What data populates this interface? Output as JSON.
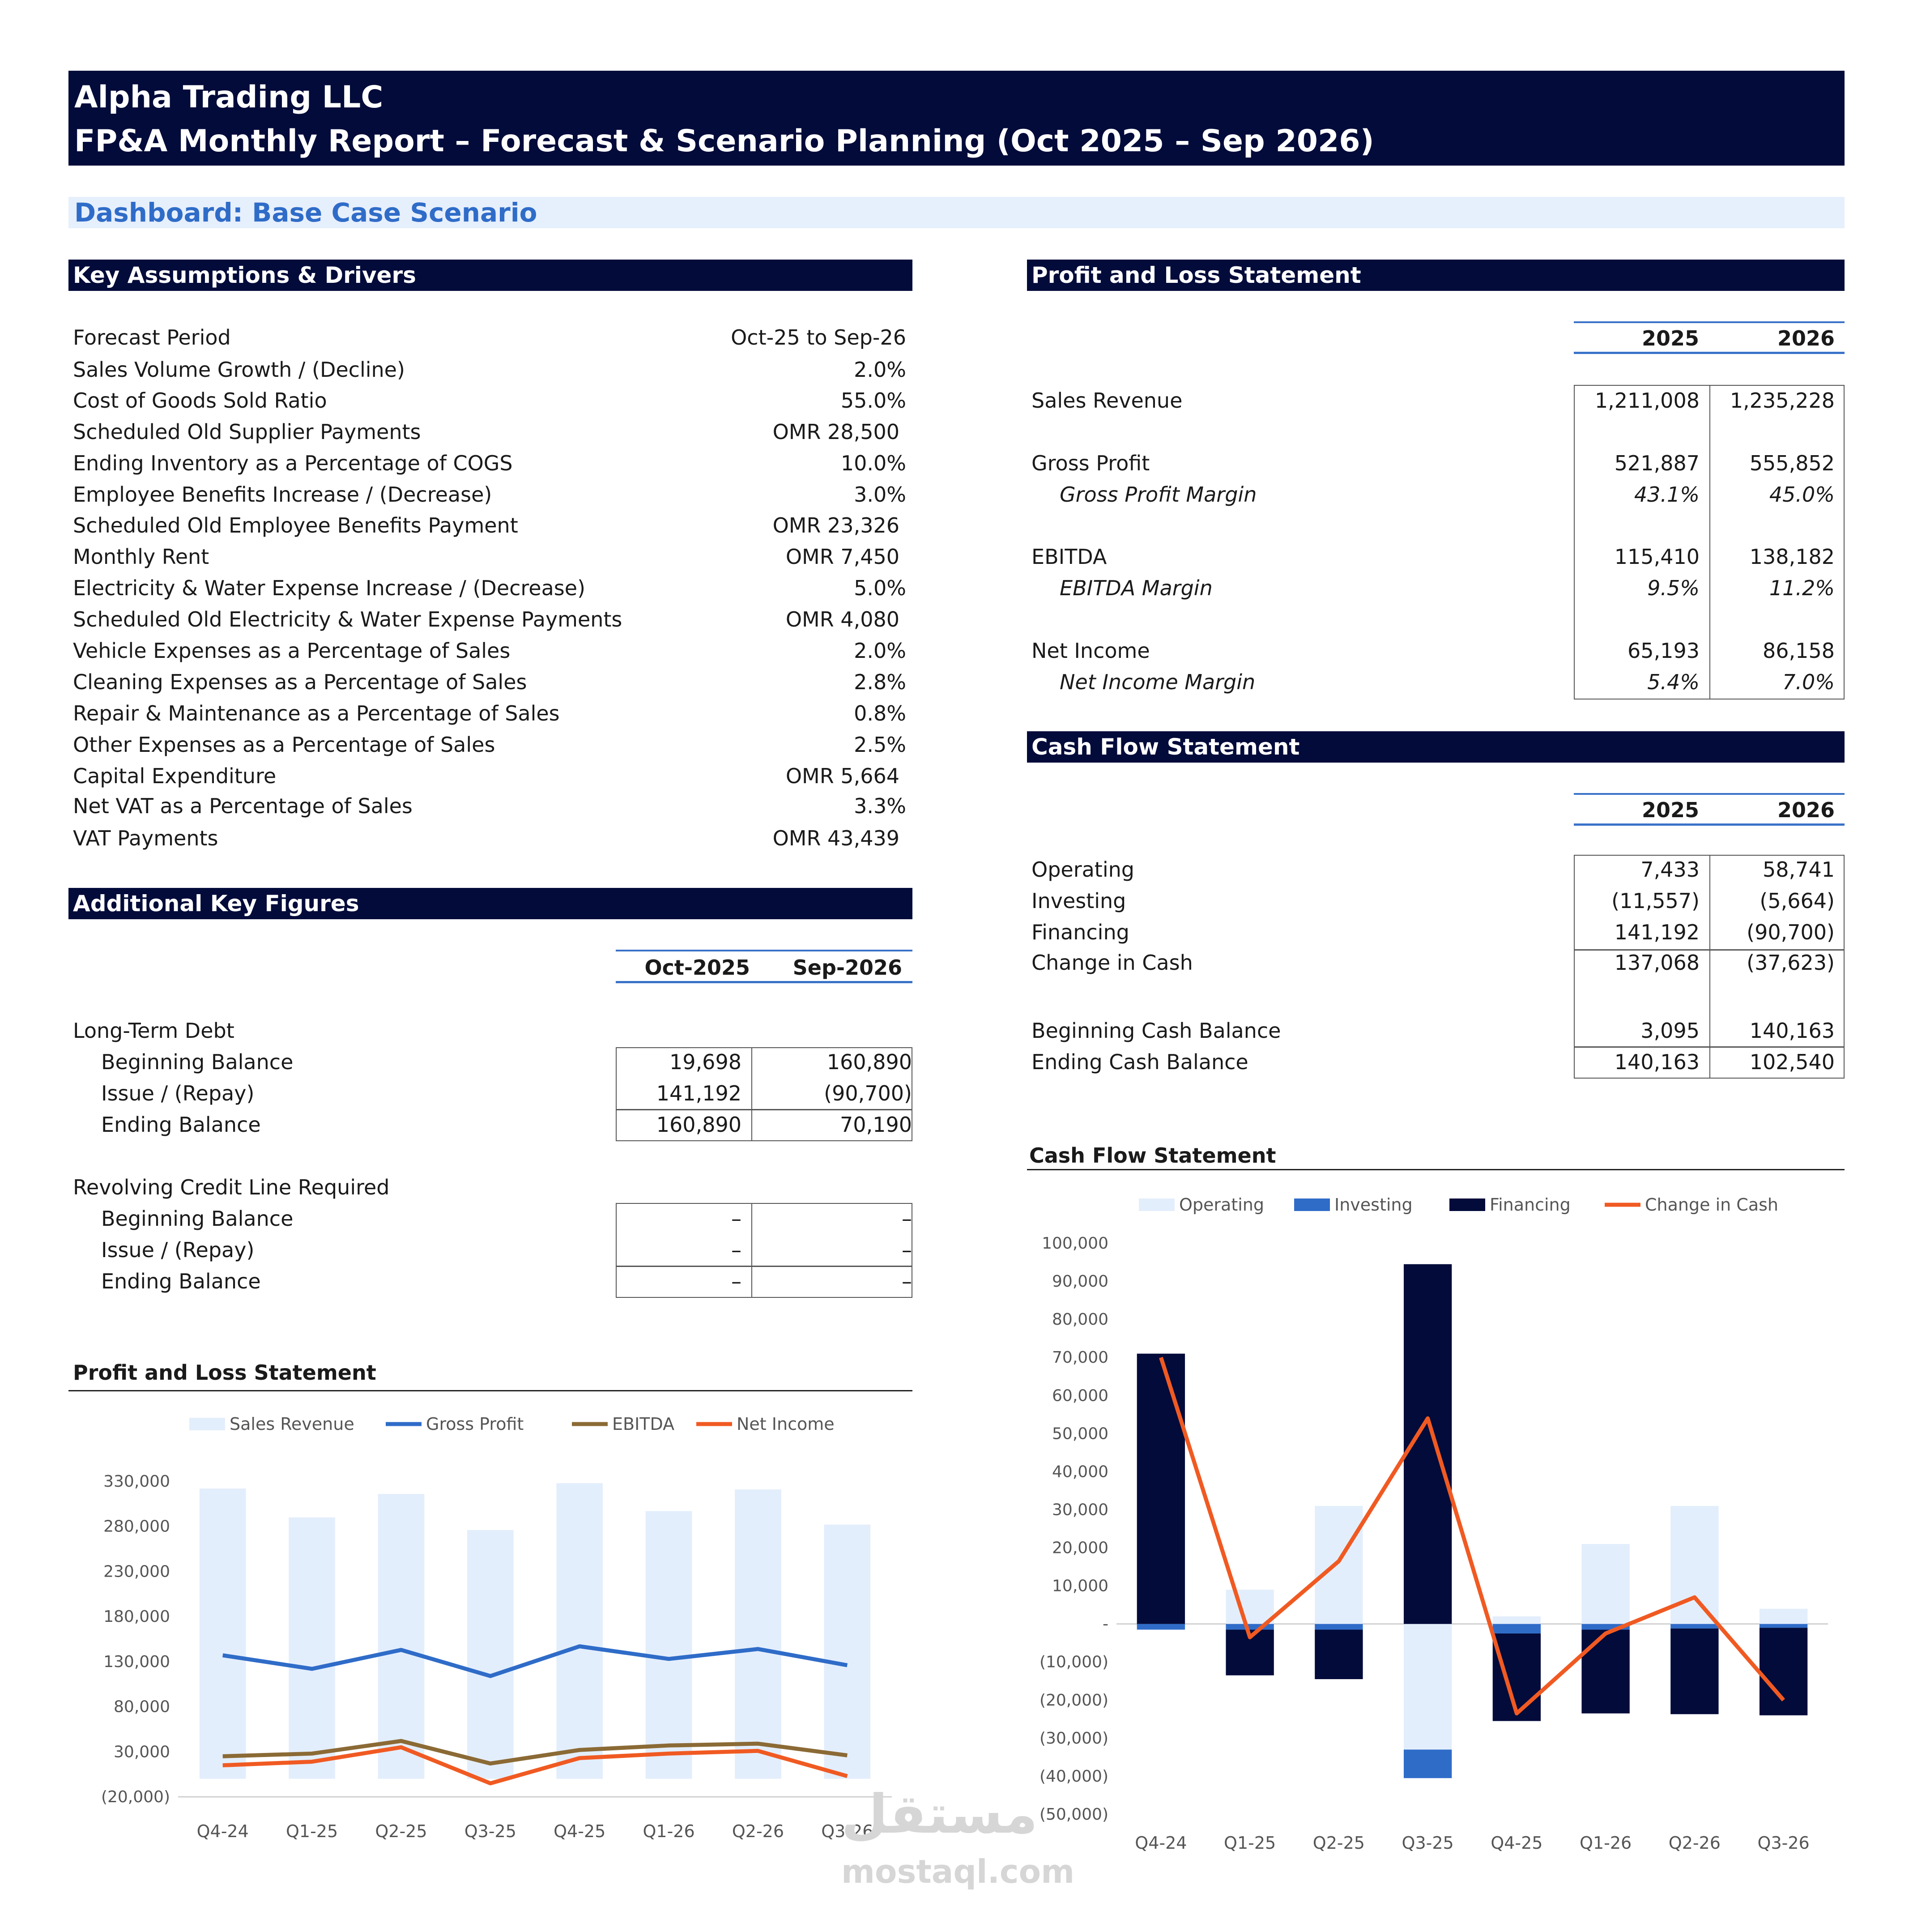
{
  "header": {
    "company": "Alpha Trading LLC",
    "report_title": "FP&A Monthly Report – Forecast & Scenario Planning (Oct 2025 – Sep 2026)"
  },
  "dashboard": {
    "label": "Dashboard: Base Case Scenario"
  },
  "assumptions": {
    "title": "Key Assumptions & Drivers",
    "rows": [
      {
        "label": "Forecast Period",
        "value": "Oct-25 to Sep-26"
      },
      {
        "label": "Sales Volume Growth / (Decline)",
        "value": "2.0%"
      },
      {
        "label": "Cost of Goods Sold Ratio",
        "value": "55.0%"
      },
      {
        "label": "Scheduled Old Supplier Payments",
        "value": "OMR 28,500"
      },
      {
        "label": "Ending Inventory as a Percentage of COGS",
        "value": "10.0%"
      },
      {
        "label": "Employee Benefits Increase / (Decrease)",
        "value": "3.0%"
      },
      {
        "label": "Scheduled Old Employee Benefits Payment",
        "value": "OMR 23,326"
      },
      {
        "label": "Monthly Rent",
        "value": "OMR 7,450"
      },
      {
        "label": "Electricity & Water Expense Increase / (Decrease)",
        "value": "5.0%"
      },
      {
        "label": "Scheduled Old Electricity & Water Expense Payments",
        "value": "OMR 4,080"
      },
      {
        "label": "Vehicle Expenses as a Percentage of Sales",
        "value": "2.0%"
      },
      {
        "label": "Cleaning Expenses as a Percentage of Sales",
        "value": "2.8%"
      },
      {
        "label": "Repair & Maintenance as a Percentage of Sales",
        "value": "0.8%"
      },
      {
        "label": "Other Expenses as a Percentage of Sales",
        "value": "2.5%"
      },
      {
        "label": "Capital Expenditure",
        "value": "OMR 5,664"
      },
      {
        "label": "Net VAT as a Percentage of Sales",
        "value": "3.3%"
      },
      {
        "label": "VAT Payments",
        "value": "OMR 43,439"
      }
    ]
  },
  "key_figures": {
    "title": "Additional Key Figures",
    "col1": "Oct-2025",
    "col2": "Sep-2026",
    "ltd": {
      "label": "Long-Term Debt",
      "rows": [
        {
          "label": "Beginning Balance",
          "v1": "19,698",
          "v2": "160,890"
        },
        {
          "label": "Issue / (Repay)",
          "v1": "141,192",
          "v2": "(90,700)"
        },
        {
          "label": "Ending Balance",
          "v1": "160,890",
          "v2": "70,190"
        }
      ]
    },
    "rcl": {
      "label": "Revolving Credit Line Required",
      "rows": [
        {
          "label": "Beginning Balance",
          "v1": "–",
          "v2": "–"
        },
        {
          "label": "Issue / (Repay)",
          "v1": "–",
          "v2": "–"
        },
        {
          "label": "Ending Balance",
          "v1": "–",
          "v2": "–"
        }
      ]
    }
  },
  "pnl": {
    "title": "Profit and Loss Statement",
    "col1": "2025",
    "col2": "2026",
    "rows": [
      {
        "label": "Sales Revenue",
        "v1": "1,211,008",
        "v2": "1,235,228"
      },
      {
        "label": "Gross Profit",
        "v1": "521,887",
        "v2": "555,852"
      },
      {
        "label": "Gross Profit Margin",
        "v1": "43.1%",
        "v2": "45.0%"
      },
      {
        "label": "EBITDA",
        "v1": "115,410",
        "v2": "138,182"
      },
      {
        "label": "EBITDA Margin",
        "v1": "9.5%",
        "v2": "11.2%"
      },
      {
        "label": "Net Income",
        "v1": "65,193",
        "v2": "86,158"
      },
      {
        "label": "Net Income Margin",
        "v1": "5.4%",
        "v2": "7.0%"
      }
    ]
  },
  "cashflow": {
    "title": "Cash Flow Statement",
    "col1": "2025",
    "col2": "2026",
    "rows": [
      {
        "label": "Operating",
        "v1": "7,433",
        "v2": "58,741"
      },
      {
        "label": "Investing",
        "v1": "(11,557)",
        "v2": "(5,664)"
      },
      {
        "label": "Financing",
        "v1": "141,192",
        "v2": "(90,700)"
      },
      {
        "label": "Change in Cash",
        "v1": "137,068",
        "v2": "(37,623)"
      },
      {
        "label": "Beginning Cash Balance",
        "v1": "3,095",
        "v2": "140,163"
      },
      {
        "label": "Ending Cash Balance",
        "v1": "140,163",
        "v2": "102,540"
      }
    ]
  },
  "chart_data": [
    {
      "type": "bar",
      "title": "Profit and Loss Statement",
      "categories": [
        "Q4-24",
        "Q1-25",
        "Q2-25",
        "Q3-25",
        "Q4-25",
        "Q1-26",
        "Q2-26",
        "Q3-26"
      ],
      "ylim": [
        -20000,
        330000
      ],
      "yticks": [
        -20000,
        30000,
        80000,
        130000,
        180000,
        230000,
        280000,
        330000
      ],
      "ytick_labels": [
        "(20,000)",
        "30,000",
        "80,000",
        "130,000",
        "180,000",
        "230,000",
        "280,000",
        "330,000"
      ],
      "legend_position": "top",
      "series": [
        {
          "name": "Sales Revenue",
          "kind": "bar",
          "color": "#e3eefc",
          "values": [
            322000,
            290000,
            316000,
            276000,
            328000,
            297000,
            321000,
            282000
          ]
        },
        {
          "name": "Gross Profit",
          "kind": "line",
          "color": "#2f6cc8",
          "values": [
            137000,
            122000,
            143000,
            114000,
            147000,
            133000,
            144000,
            126000
          ]
        },
        {
          "name": "EBITDA",
          "kind": "line",
          "color": "#8b6a35",
          "values": [
            25000,
            28000,
            42000,
            17000,
            32000,
            37000,
            39000,
            26000
          ]
        },
        {
          "name": "Net Income",
          "kind": "line",
          "color": "#f05a22",
          "values": [
            15000,
            19000,
            35000,
            -5000,
            23000,
            28000,
            31000,
            3000
          ]
        }
      ]
    },
    {
      "type": "bar",
      "stacked": true,
      "title": "Cash Flow Statement",
      "categories": [
        "Q4-24",
        "Q1-25",
        "Q2-25",
        "Q3-25",
        "Q4-25",
        "Q1-26",
        "Q2-26",
        "Q3-26"
      ],
      "ylim": [
        -50000,
        100000
      ],
      "yticks": [
        -50000,
        -40000,
        -30000,
        -20000,
        -10000,
        0,
        10000,
        20000,
        30000,
        40000,
        50000,
        60000,
        70000,
        80000,
        90000,
        100000
      ],
      "ytick_labels": [
        "(50,000)",
        "(40,000)",
        "(30,000)",
        "(20,000)",
        "(10,000)",
        "-",
        "10,000",
        "20,000",
        "30,000",
        "40,000",
        "50,000",
        "60,000",
        "70,000",
        "80,000",
        "90,000",
        "100,000"
      ],
      "legend_position": "top",
      "series": [
        {
          "name": "Operating",
          "kind": "bar",
          "color": "#e3eefc",
          "values": [
            0,
            9000,
            31000,
            -33000,
            2000,
            21000,
            31000,
            4000
          ]
        },
        {
          "name": "Investing",
          "kind": "bar",
          "color": "#2f6cc8",
          "values": [
            -1500,
            -1500,
            -1500,
            -7500,
            -2500,
            -1500,
            -1200,
            -1000
          ]
        },
        {
          "name": "Financing",
          "kind": "bar",
          "color": "#020b3a",
          "values": [
            71000,
            -12000,
            -13000,
            94500,
            -23000,
            -22000,
            -22500,
            -23000
          ]
        },
        {
          "name": "Change in Cash",
          "kind": "line",
          "color": "#f05a22",
          "values": [
            70000,
            -3500,
            16500,
            54000,
            -23500,
            -2500,
            7000,
            -20000
          ]
        }
      ]
    }
  ],
  "watermark": {
    "arabic": "مستقل",
    "latin": "mostaql.com"
  }
}
